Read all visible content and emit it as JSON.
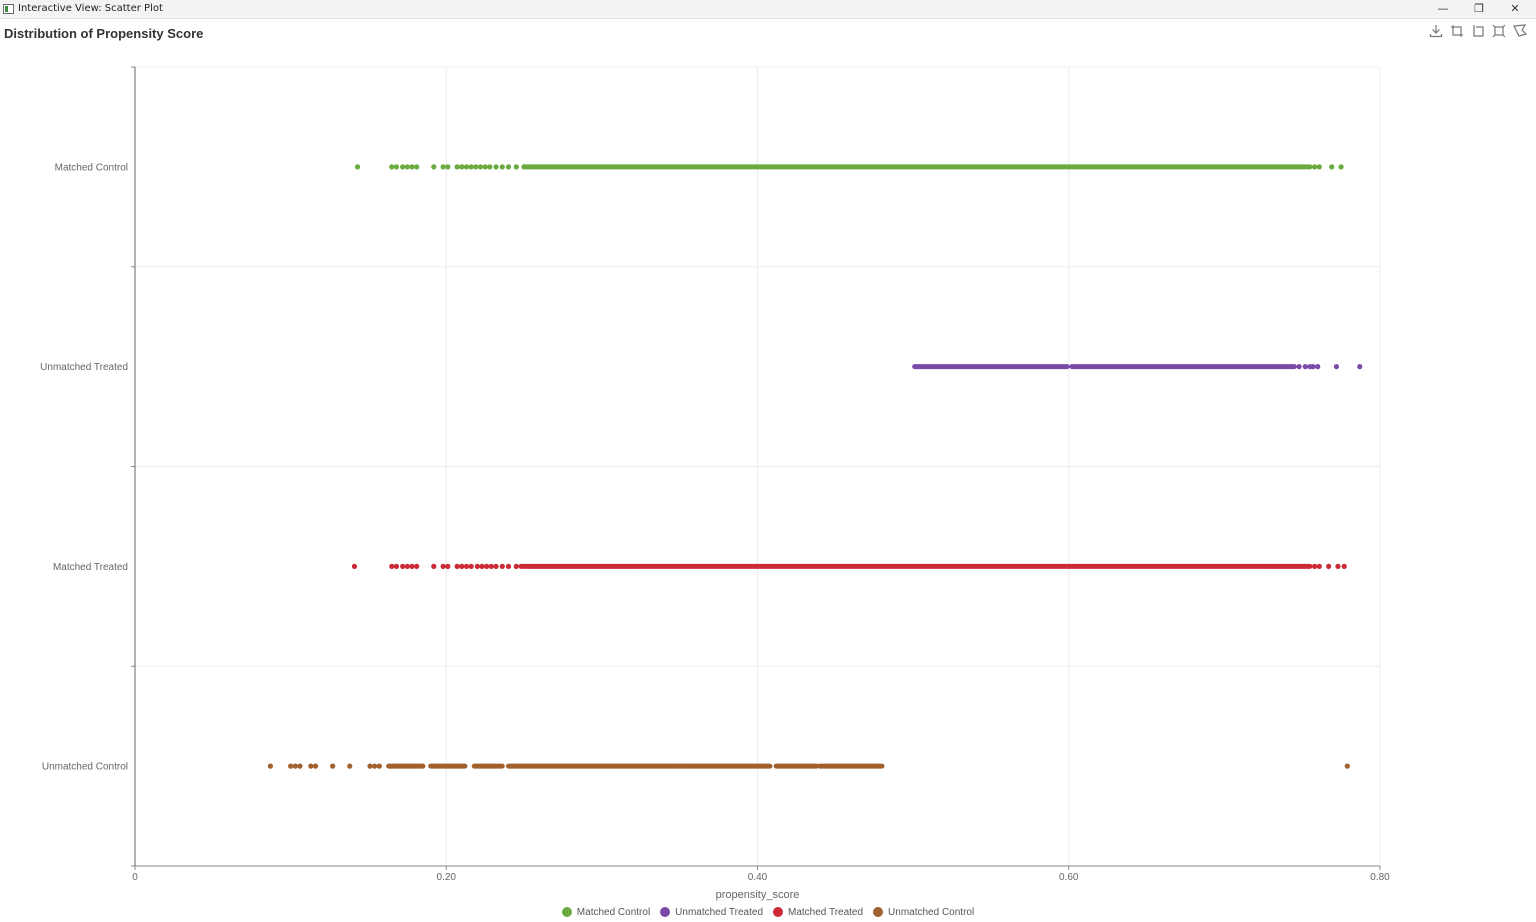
{
  "window": {
    "title": "Interactive View: Scatter Plot",
    "minimize_glyph": "—",
    "restore_glyph": "❐",
    "close_glyph": "✕"
  },
  "toolbar": {
    "icons": [
      "download-icon",
      "crop-icon",
      "crop-alt-icon",
      "zoom-extents-icon",
      "lasso-select-icon"
    ]
  },
  "chart_data": {
    "type": "scatter",
    "title": "Distribution of Propensity Score",
    "xlabel": "propensity_score",
    "ylabel": "",
    "xlim": [
      0,
      0.8
    ],
    "x_ticks": [
      0,
      0.2,
      0.4,
      0.6,
      0.8
    ],
    "x_tick_labels": [
      "0",
      "0.20",
      "0.40",
      "0.60",
      "0.80"
    ],
    "categories": [
      "Matched Control",
      "Unmatched Treated",
      "Matched Treated",
      "Unmatched Control"
    ],
    "grid": true,
    "legend_position": "bottom",
    "series": [
      {
        "name": "Matched Control",
        "color": "#6aaa3f",
        "category": "Matched Control",
        "x": [
          0.143,
          0.165,
          0.168,
          0.172,
          0.175,
          0.178,
          0.181,
          0.192,
          0.198,
          0.201,
          0.207,
          0.21,
          0.213,
          0.216,
          0.219,
          0.222,
          0.225,
          0.228,
          0.232,
          0.236,
          0.24,
          0.245,
          0.25
        ],
        "spans": [
          [
            0.25,
            0.755
          ]
        ],
        "x_after": [
          0.758,
          0.761,
          0.769,
          0.775
        ]
      },
      {
        "name": "Unmatched Treated",
        "color": "#7b4aa6",
        "category": "Unmatched Treated",
        "x": [
          0.748,
          0.752,
          0.755,
          0.757,
          0.76,
          0.772,
          0.787
        ],
        "spans": [
          [
            0.501,
            0.599
          ],
          [
            0.602,
            0.745
          ]
        ],
        "x_after": []
      },
      {
        "name": "Matched Treated",
        "color": "#cc2b36",
        "category": "Matched Treated",
        "x": [
          0.141,
          0.165,
          0.168,
          0.172,
          0.175,
          0.178,
          0.181,
          0.192,
          0.198,
          0.201,
          0.207,
          0.21,
          0.213,
          0.216,
          0.22,
          0.223,
          0.226,
          0.229,
          0.232,
          0.236,
          0.24,
          0.245
        ],
        "spans": [
          [
            0.248,
            0.755
          ]
        ],
        "x_after": [
          0.758,
          0.761,
          0.767,
          0.773,
          0.777
        ]
      },
      {
        "name": "Unmatched Control",
        "color": "#a0612e",
        "category": "Unmatched Control",
        "x": [
          0.087,
          0.1,
          0.103,
          0.106,
          0.113,
          0.116,
          0.127,
          0.138,
          0.151,
          0.154,
          0.157,
          0.779
        ],
        "spans": [
          [
            0.163,
            0.185
          ],
          [
            0.19,
            0.212
          ],
          [
            0.218,
            0.236
          ],
          [
            0.24,
            0.35
          ],
          [
            0.35,
            0.408
          ],
          [
            0.412,
            0.438
          ],
          [
            0.44,
            0.48
          ]
        ],
        "x_after": []
      }
    ]
  }
}
